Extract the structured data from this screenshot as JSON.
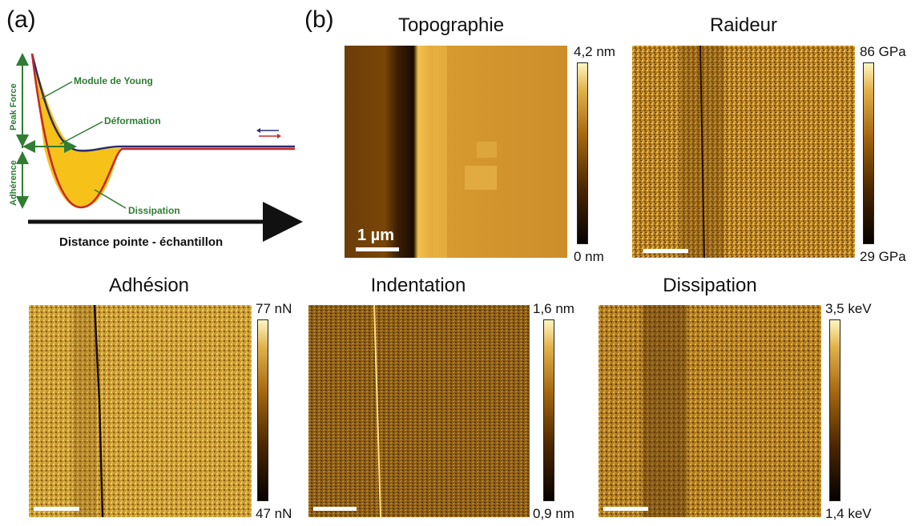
{
  "panels": {
    "a": "(a)",
    "b": "(b)"
  },
  "schematic": {
    "axis_peak_force": "Peak Force",
    "axis_adherence": "Adhérence",
    "label_module": "Module de Young",
    "label_deformation": "Déformation",
    "label_dissipation": "Dissipation",
    "x_axis": "Distance pointe - échantillon",
    "colors": {
      "label_green": "#2e7d32",
      "approach": "#2b2d6e",
      "retract": "#c62828",
      "fill": "#f6c21a",
      "arrow": "#111111"
    }
  },
  "maps": {
    "topographie": {
      "title": "Topographie",
      "max": "4,2 nm",
      "min": "0 nm",
      "scale": "1 µm"
    },
    "raideur": {
      "title": "Raideur",
      "max": "86 GPa",
      "min": "29 GPa"
    },
    "adhesion": {
      "title": "Adhésion",
      "max": "77 nN",
      "min": "47 nN"
    },
    "indentation": {
      "title": "Indentation",
      "max": "1,6 nm",
      "min": "0,9 nm"
    },
    "dissipation": {
      "title": "Dissipation",
      "max": "3,5 keV",
      "min": "1,4 keV"
    }
  },
  "colormap": [
    "#050200",
    "#4a2600",
    "#a5670f",
    "#e0b24a",
    "#fff6bf"
  ]
}
